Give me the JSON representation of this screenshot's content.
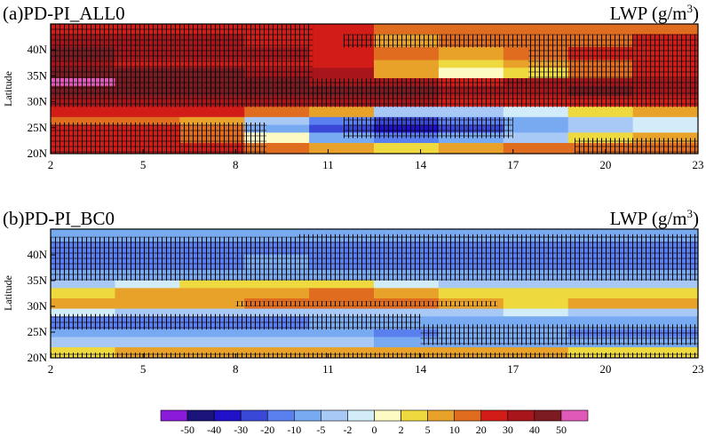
{
  "chart_data": [
    {
      "type": "heatmap",
      "title_left": "(a)PD-PI_ALL0",
      "title_right": "LWP (g/m",
      "title_right_sup": "3",
      "title_right_close": ")",
      "ylabel": "Latitude",
      "x_ticks": [
        "2",
        "5",
        "8",
        "11",
        "14",
        "17",
        "20",
        "23"
      ],
      "x_range": [
        2,
        23
      ],
      "y_ticks": [
        "20N",
        "25N",
        "30N",
        "35N",
        "40N"
      ],
      "y_range": [
        20,
        45
      ],
      "bands": [
        {
          "lat": [
            43,
            45
          ],
          "values": [
            20,
            20,
            20,
            20,
            20,
            10,
            10,
            10,
            10,
            10
          ]
        },
        {
          "lat": [
            40.5,
            43
          ],
          "values": [
            30,
            30,
            30,
            20,
            20,
            5,
            10,
            10,
            10,
            20
          ]
        },
        {
          "lat": [
            38,
            40.5
          ],
          "values": [
            40,
            30,
            30,
            30,
            20,
            10,
            5,
            10,
            20,
            20
          ]
        },
        {
          "lat": [
            36.5,
            38
          ],
          "values": [
            30,
            20,
            20,
            20,
            20,
            5,
            2,
            5,
            10,
            20
          ]
        },
        {
          "lat": [
            34.5,
            36.5
          ],
          "values": [
            40,
            40,
            40,
            30,
            30,
            5,
            0,
            2,
            10,
            20
          ]
        },
        {
          "lat": [
            33,
            34.5
          ],
          "values": [
            50,
            40,
            40,
            40,
            30,
            30,
            20,
            30,
            30,
            30
          ]
        },
        {
          "lat": [
            31,
            33
          ],
          "values": [
            40,
            40,
            40,
            40,
            40,
            40,
            30,
            30,
            40,
            30
          ]
        },
        {
          "lat": [
            29,
            31
          ],
          "values": [
            30,
            30,
            30,
            30,
            30,
            30,
            20,
            20,
            20,
            20
          ]
        },
        {
          "lat": [
            27,
            29
          ],
          "values": [
            20,
            20,
            20,
            10,
            5,
            -5,
            -5,
            -2,
            2,
            5
          ]
        },
        {
          "lat": [
            25.5,
            27
          ],
          "values": [
            10,
            10,
            5,
            -5,
            -20,
            -30,
            -20,
            -10,
            -5,
            -2
          ]
        },
        {
          "lat": [
            24,
            25.5
          ],
          "values": [
            20,
            20,
            10,
            -10,
            -30,
            -40,
            -30,
            -10,
            -5,
            -2
          ]
        },
        {
          "lat": [
            22,
            24
          ],
          "values": [
            20,
            20,
            10,
            0,
            -10,
            -20,
            -10,
            -5,
            2,
            5
          ]
        },
        {
          "lat": [
            20,
            22
          ],
          "values": [
            20,
            20,
            20,
            10,
            5,
            2,
            5,
            10,
            10,
            10
          ]
        }
      ],
      "hatch_regions": [
        {
          "x": [
            2,
            10.5
          ],
          "lat": [
            29,
            45
          ]
        },
        {
          "x": [
            10.5,
            23
          ],
          "lat": [
            29,
            34.5
          ]
        },
        {
          "x": [
            11.5,
            23
          ],
          "lat": [
            40.5,
            43
          ]
        },
        {
          "x": [
            17.5,
            23
          ],
          "lat": [
            34.5,
            40.5
          ]
        },
        {
          "x": [
            11.5,
            17
          ],
          "lat": [
            23,
            27
          ]
        },
        {
          "x": [
            2,
            9
          ],
          "lat": [
            20,
            26
          ]
        },
        {
          "x": [
            19,
            23
          ],
          "lat": [
            20,
            23
          ]
        }
      ]
    },
    {
      "type": "heatmap",
      "title_left": "(b)PD-PI_BC0",
      "title_right": "LWP (g/m",
      "title_right_sup": "3",
      "title_right_close": ")",
      "ylabel": "Latitude",
      "x_ticks": [
        "2",
        "5",
        "8",
        "11",
        "14",
        "17",
        "20",
        "23"
      ],
      "x_range": [
        2,
        23
      ],
      "y_ticks": [
        "20N",
        "25N",
        "30N",
        "35N",
        "40N"
      ],
      "y_range": [
        20,
        45
      ],
      "bands": [
        {
          "lat": [
            42.5,
            45
          ],
          "values": [
            -10,
            -10,
            -10,
            -10,
            -10,
            -10,
            -10,
            -10,
            -10,
            -10
          ]
        },
        {
          "lat": [
            40,
            42.5
          ],
          "values": [
            -20,
            -20,
            -20,
            -20,
            -20,
            -20,
            -20,
            -20,
            -20,
            -20
          ]
        },
        {
          "lat": [
            37,
            40
          ],
          "values": [
            -20,
            -20,
            -20,
            -10,
            -20,
            -20,
            -20,
            -20,
            -20,
            -20
          ]
        },
        {
          "lat": [
            35,
            37
          ],
          "values": [
            -10,
            -10,
            -10,
            -10,
            -10,
            -10,
            -10,
            -10,
            -10,
            -10
          ]
        },
        {
          "lat": [
            33.5,
            35
          ],
          "values": [
            -5,
            -2,
            2,
            2,
            2,
            -2,
            -5,
            -5,
            -5,
            -5
          ]
        },
        {
          "lat": [
            31.5,
            33.5
          ],
          "values": [
            2,
            5,
            5,
            5,
            10,
            5,
            2,
            2,
            2,
            2
          ]
        },
        {
          "lat": [
            29.5,
            31.5
          ],
          "values": [
            5,
            5,
            5,
            10,
            10,
            10,
            5,
            2,
            5,
            5
          ]
        },
        {
          "lat": [
            28,
            29.5
          ],
          "values": [
            -2,
            -5,
            -5,
            -5,
            -5,
            -5,
            -5,
            -2,
            -5,
            -5
          ]
        },
        {
          "lat": [
            25.5,
            28
          ],
          "values": [
            -20,
            -20,
            -20,
            -20,
            -10,
            -10,
            -10,
            -10,
            -10,
            -10
          ]
        },
        {
          "lat": [
            24,
            25.5
          ],
          "values": [
            -10,
            -10,
            -10,
            -10,
            -10,
            -20,
            -10,
            -10,
            -20,
            -20
          ]
        },
        {
          "lat": [
            22,
            24
          ],
          "values": [
            -5,
            -5,
            -5,
            -5,
            -5,
            -10,
            -10,
            -10,
            -10,
            -10
          ]
        },
        {
          "lat": [
            20,
            22
          ],
          "values": [
            2,
            5,
            5,
            5,
            5,
            5,
            5,
            5,
            2,
            2
          ]
        }
      ],
      "hatch_regions": [
        {
          "x": [
            2,
            23
          ],
          "lat": [
            35,
            43.5
          ]
        },
        {
          "x": [
            10,
            23
          ],
          "lat": [
            42.5,
            44
          ]
        },
        {
          "x": [
            2,
            14
          ],
          "lat": [
            25.5,
            28.5
          ]
        },
        {
          "x": [
            14,
            23
          ],
          "lat": [
            22.5,
            26.5
          ]
        },
        {
          "x": [
            8,
            16.5
          ],
          "lat": [
            30,
            31
          ]
        },
        {
          "x": [
            2,
            23
          ],
          "lat": [
            20,
            21
          ]
        }
      ]
    }
  ],
  "colorbar": {
    "levels": [
      "-50",
      "-40",
      "-30",
      "-20",
      "-10",
      "-5",
      "-2",
      "0",
      "2",
      "5",
      "10",
      "20",
      "30",
      "40",
      "50"
    ],
    "bin_values": [
      -60,
      -50,
      -40,
      -30,
      -20,
      -10,
      -5,
      -2,
      0,
      2,
      5,
      10,
      20,
      30,
      40,
      50
    ],
    "colors": [
      "#8a1bd8",
      "#1a147a",
      "#2010c8",
      "#3a48d8",
      "#5a80f0",
      "#78aaf2",
      "#a8c8f6",
      "#d2ecfa",
      "#fefac4",
      "#eeda3e",
      "#e8a22a",
      "#e06c20",
      "#d21c18",
      "#a8161c",
      "#7c1c22",
      "#e058b8"
    ]
  }
}
